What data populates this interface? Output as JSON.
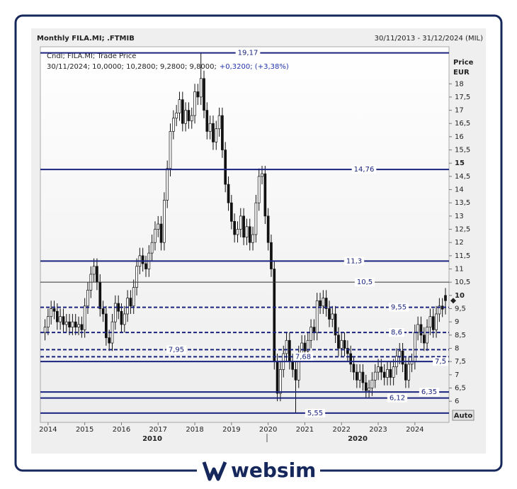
{
  "chart_data": {
    "type": "candlestick",
    "title": "Monthly FILA.MI; .FTMIB",
    "date_range": "30/11/2013 - 31/12/2024 (MIL)",
    "info_line": "Cndl; FILA.MI; Trade Price",
    "info_ohlc": "30/11/2024; 10,0000; 10,2800; 9,2800; 9,8000;",
    "info_change": "+0,3200; (+3,38%)",
    "y_axis_label": "Price",
    "y_axis_unit": "EUR",
    "auto_button": "Auto",
    "x_group_labels": [
      "2010",
      "2020"
    ],
    "up_color": "#ffffff",
    "down_color": "#111111",
    "outline_color": "#111111",
    "xlim": [
      2013.79,
      2024.93
    ],
    "xticks": [
      2014,
      2015,
      2016,
      2017,
      2018,
      2019,
      2020,
      2021,
      2022,
      2023,
      2024
    ],
    "ylim": [
      5.2,
      19.4
    ],
    "yticks": [
      6,
      {
        "value": 6.5,
        "label": "6,5"
      },
      7,
      {
        "value": 7.5,
        "label": "7,5"
      },
      8,
      {
        "value": 8.5,
        "label": "8,5"
      },
      9,
      {
        "value": 9.5,
        "label": "9,5"
      },
      10,
      {
        "value": 10.5,
        "label": "10,5"
      },
      11,
      {
        "value": 11.5,
        "label": "11,5"
      },
      12,
      {
        "value": 12.5,
        "label": "12,5"
      },
      13,
      {
        "value": 13.5,
        "label": "13,5"
      },
      14,
      {
        "value": 14.5,
        "label": "14,5"
      },
      15,
      {
        "value": 15.5,
        "label": "15,5"
      },
      16,
      {
        "value": 16.5,
        "label": "16,5"
      },
      17,
      {
        "value": 17.5,
        "label": "17,5"
      },
      18
    ],
    "levels": [
      {
        "value": 19.17,
        "label": "19,17",
        "style": "solid"
      },
      {
        "value": 14.76,
        "label": "14,76",
        "style": "solid"
      },
      {
        "value": 11.3,
        "label": "11,3",
        "style": "solid"
      },
      {
        "value": 10.5,
        "label": "10,5",
        "style": "thin"
      },
      {
        "value": 9.55,
        "label": "9,55",
        "style": "dashed"
      },
      {
        "value": 8.6,
        "label": "8,6",
        "style": "dashed"
      },
      {
        "value": 7.95,
        "label": "7,95",
        "style": "dashed"
      },
      {
        "value": 7.68,
        "label": "7,68",
        "style": "dashed"
      },
      {
        "value": 7.5,
        "label": "7,5",
        "style": "solid"
      },
      {
        "value": 6.35,
        "label": "6,35",
        "style": "solid"
      },
      {
        "value": 6.12,
        "label": "6,12",
        "style": "solid"
      },
      {
        "value": 5.55,
        "label": "5,55",
        "style": "solid"
      }
    ],
    "x": [
      2013.917,
      2014,
      2014.083,
      2014.167,
      2014.25,
      2014.333,
      2014.417,
      2014.5,
      2014.583,
      2014.667,
      2014.75,
      2014.833,
      2014.917,
      2015,
      2015.083,
      2015.167,
      2015.25,
      2015.333,
      2015.417,
      2015.5,
      2015.583,
      2015.667,
      2015.75,
      2015.833,
      2015.917,
      2016,
      2016.083,
      2016.167,
      2016.25,
      2016.333,
      2016.417,
      2016.5,
      2016.583,
      2016.667,
      2016.75,
      2016.833,
      2016.917,
      2017,
      2017.083,
      2017.167,
      2017.25,
      2017.333,
      2017.417,
      2017.5,
      2017.583,
      2017.667,
      2017.75,
      2017.833,
      2017.917,
      2018,
      2018.083,
      2018.167,
      2018.25,
      2018.333,
      2018.417,
      2018.5,
      2018.583,
      2018.667,
      2018.75,
      2018.833,
      2018.917,
      2019,
      2019.083,
      2019.167,
      2019.25,
      2019.333,
      2019.417,
      2019.5,
      2019.583,
      2019.667,
      2019.75,
      2019.833,
      2019.917,
      2020,
      2020.083,
      2020.167,
      2020.25,
      2020.333,
      2020.417,
      2020.5,
      2020.583,
      2020.667,
      2020.75,
      2020.833,
      2020.917,
      2021,
      2021.083,
      2021.167,
      2021.25,
      2021.333,
      2021.417,
      2021.5,
      2021.583,
      2021.667,
      2021.75,
      2021.833,
      2021.917,
      2022,
      2022.083,
      2022.167,
      2022.25,
      2022.333,
      2022.417,
      2022.5,
      2022.583,
      2022.667,
      2022.75,
      2022.833,
      2022.917,
      2023,
      2023.083,
      2023.167,
      2023.25,
      2023.333,
      2023.417,
      2023.5,
      2023.583,
      2023.667,
      2023.75,
      2023.833,
      2023.917,
      2024,
      2024.083,
      2024.167,
      2024.25,
      2024.333,
      2024.417,
      2024.5,
      2024.583,
      2024.667,
      2024.75,
      2024.833
    ],
    "open": [
      8.6,
      8.8,
      9.2,
      9.5,
      9.4,
      9.0,
      9.2,
      8.9,
      9.0,
      8.8,
      9.0,
      8.8,
      8.9,
      8.7,
      9.6,
      10.2,
      10.8,
      11.1,
      10.5,
      9.5,
      9.3,
      8.4,
      8.2,
      9.0,
      9.7,
      9.4,
      8.9,
      9.3,
      9.9,
      9.6,
      10.3,
      11.1,
      11.5,
      11.2,
      11.0,
      11.6,
      12.0,
      12.5,
      12.7,
      12.0,
      13.6,
      14.8,
      16.2,
      16.7,
      16.9,
      17.4,
      16.5,
      17.0,
      16.6,
      16.8,
      17.7,
      17.5,
      18.2,
      17.0,
      16.2,
      16.5,
      15.8,
      16.3,
      16.8,
      15.5,
      14.2,
      13.5,
      12.8,
      12.3,
      12.5,
      13.0,
      12.2,
      12.6,
      12.0,
      12.3,
      13.5,
      14.5,
      14.6,
      13.0,
      12.0,
      11.0,
      7.5,
      6.3,
      7.2,
      7.8,
      8.3,
      7.5,
      7.2,
      6.8,
      7.8,
      8.2,
      7.9,
      8.3,
      8.8,
      8.6,
      9.8,
      9.6,
      9.9,
      9.5,
      9.1,
      9.3,
      8.5,
      8.0,
      8.3,
      8.0,
      7.8,
      7.4,
      7.1,
      6.8,
      7.1,
      6.7,
      6.4,
      6.5,
      6.8,
      7.1,
      7.3,
      7.1,
      6.9,
      7.2,
      6.9,
      7.3,
      7.7,
      7.9,
      7.4,
      6.8,
      7.4,
      7.5,
      8.6,
      8.9,
      8.5,
      8.2,
      8.8,
      9.2,
      8.7,
      9.3,
      9.6,
      10.0
    ],
    "high": [
      9.1,
      9.5,
      9.8,
      9.8,
      9.7,
      9.5,
      9.5,
      9.3,
      9.3,
      9.3,
      9.3,
      9.2,
      9.2,
      9.9,
      10.5,
      11.1,
      11.4,
      11.4,
      10.8,
      9.8,
      9.6,
      8.7,
      9.3,
      10.0,
      10.0,
      9.7,
      9.6,
      10.2,
      10.2,
      10.6,
      11.4,
      11.8,
      11.8,
      11.5,
      11.9,
      12.3,
      12.8,
      13.0,
      13.0,
      13.9,
      15.1,
      16.5,
      17.0,
      17.2,
      17.7,
      17.7,
      17.3,
      17.3,
      17.1,
      18.0,
      18.0,
      19.17,
      18.5,
      17.3,
      16.8,
      16.8,
      16.6,
      17.1,
      17.1,
      15.8,
      14.5,
      13.8,
      13.1,
      12.8,
      13.3,
      13.3,
      12.9,
      12.9,
      12.6,
      13.8,
      14.8,
      14.9,
      14.9,
      13.3,
      12.3,
      11.3,
      7.8,
      7.5,
      8.1,
      8.6,
      8.6,
      7.8,
      7.5,
      8.1,
      8.5,
      8.5,
      8.6,
      9.1,
      9.1,
      10.1,
      10.1,
      10.2,
      10.2,
      9.8,
      9.6,
      9.6,
      8.8,
      8.6,
      8.6,
      8.3,
      8.1,
      7.7,
      7.4,
      7.4,
      7.4,
      7.0,
      6.8,
      7.1,
      7.4,
      7.6,
      7.6,
      7.4,
      7.5,
      7.5,
      7.6,
      8.0,
      8.2,
      8.2,
      7.7,
      7.7,
      7.8,
      8.9,
      9.2,
      9.2,
      8.8,
      9.1,
      9.5,
      9.5,
      9.6,
      9.9,
      9.9,
      10.28
    ],
    "low": [
      8.3,
      8.5,
      8.9,
      9.1,
      8.7,
      8.7,
      8.6,
      8.6,
      8.5,
      8.5,
      8.5,
      8.5,
      8.4,
      8.4,
      9.3,
      9.9,
      10.5,
      10.2,
      9.2,
      9.0,
      8.1,
      7.9,
      7.9,
      8.7,
      9.1,
      8.6,
      8.6,
      9.0,
      9.3,
      9.3,
      10.0,
      10.8,
      10.9,
      10.7,
      10.7,
      11.3,
      11.7,
      12.2,
      11.7,
      11.7,
      13.3,
      14.5,
      15.9,
      16.4,
      16.6,
      16.2,
      16.2,
      16.3,
      16.3,
      16.5,
      17.2,
      17.2,
      16.7,
      15.9,
      15.9,
      15.5,
      15.5,
      16.0,
      15.2,
      13.9,
      13.2,
      12.5,
      12.0,
      12.0,
      12.2,
      11.9,
      11.9,
      11.7,
      11.7,
      12.0,
      13.2,
      14.2,
      12.7,
      11.7,
      10.7,
      7.2,
      6.0,
      6.0,
      6.9,
      7.5,
      7.2,
      6.9,
      5.55,
      6.5,
      7.5,
      7.6,
      7.6,
      8.0,
      8.3,
      8.3,
      9.3,
      9.3,
      9.2,
      8.8,
      8.8,
      8.2,
      7.7,
      7.7,
      7.7,
      7.5,
      7.1,
      6.8,
      6.5,
      6.5,
      6.4,
      6.1,
      6.1,
      6.2,
      6.5,
      6.8,
      6.8,
      6.6,
      6.6,
      6.6,
      6.6,
      7.0,
      7.4,
      7.1,
      6.5,
      6.5,
      7.1,
      7.2,
      8.3,
      8.2,
      7.9,
      7.9,
      8.5,
      8.4,
      8.4,
      9.0,
      9.18,
      9.28
    ],
    "close": [
      8.8,
      9.2,
      9.5,
      9.4,
      9.0,
      9.2,
      8.9,
      9.0,
      8.8,
      9.0,
      8.8,
      8.9,
      8.7,
      9.6,
      10.2,
      10.8,
      11.1,
      10.5,
      9.5,
      9.3,
      8.4,
      8.2,
      9.0,
      9.7,
      9.4,
      8.9,
      9.3,
      9.9,
      9.6,
      10.3,
      11.1,
      11.5,
      11.2,
      11.0,
      11.6,
      12.0,
      12.5,
      12.7,
      12.0,
      13.6,
      14.8,
      16.2,
      16.7,
      16.9,
      17.4,
      16.5,
      17.0,
      16.6,
      16.8,
      17.7,
      17.5,
      18.2,
      17.0,
      16.2,
      16.5,
      15.8,
      16.3,
      16.8,
      15.5,
      14.2,
      13.5,
      12.8,
      12.3,
      12.5,
      13.0,
      12.2,
      12.6,
      12.0,
      12.3,
      13.5,
      14.5,
      14.6,
      13.0,
      12.0,
      11.0,
      7.5,
      6.3,
      7.2,
      7.8,
      8.3,
      7.5,
      7.2,
      6.8,
      7.8,
      8.2,
      7.9,
      8.3,
      8.8,
      8.6,
      9.8,
      9.6,
      9.9,
      9.5,
      9.1,
      9.3,
      8.5,
      8.0,
      8.3,
      8.0,
      7.8,
      7.4,
      7.1,
      6.8,
      7.1,
      6.7,
      6.4,
      6.5,
      6.8,
      7.1,
      7.3,
      7.1,
      6.9,
      7.2,
      6.9,
      7.3,
      7.7,
      7.9,
      7.4,
      6.8,
      7.4,
      7.5,
      8.6,
      8.9,
      8.5,
      8.2,
      8.8,
      9.2,
      8.7,
      9.3,
      9.6,
      9.48,
      9.8
    ]
  },
  "brand": "websim"
}
